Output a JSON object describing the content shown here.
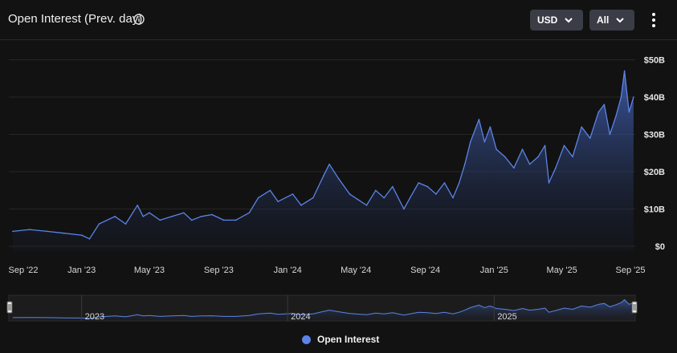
{
  "header": {
    "title": "Open Interest (Prev. day)",
    "info_icon": "info-icon",
    "currency_select": "USD",
    "range_select": "All",
    "menu_icon": "more-vertical-icon"
  },
  "colors": {
    "background": "#121212",
    "line": "#5b84e8",
    "grid": "#262626",
    "dropdown_bg": "#3a3d45"
  },
  "legend": {
    "label": "Open Interest",
    "color": "#5b84e8"
  },
  "navigator": {
    "year_labels": [
      "2023",
      "2024",
      "2025"
    ]
  },
  "chart_data": {
    "type": "area",
    "title": "Open Interest (Prev. day)",
    "x_tick_labels": [
      "Sep '22",
      "Jan '23",
      "May '23",
      "Sep '23",
      "Jan '24",
      "May '24",
      "Sep '24",
      "Jan '25",
      "May '25",
      "Sep '25"
    ],
    "y_tick_labels": [
      "$0",
      "$10B",
      "$20B",
      "$30B",
      "$40B",
      "$50B"
    ],
    "ylim": [
      0,
      50
    ],
    "y_unit": "billion USD",
    "grid": true,
    "legend_position": "bottom-center",
    "series": [
      {
        "name": "Open Interest",
        "x": [
          "2022-09-01",
          "2022-10-01",
          "2022-11-01",
          "2022-12-01",
          "2023-01-01",
          "2023-01-15",
          "2023-02-01",
          "2023-03-01",
          "2023-03-20",
          "2023-04-10",
          "2023-04-20",
          "2023-05-01",
          "2023-05-20",
          "2023-06-10",
          "2023-07-01",
          "2023-07-15",
          "2023-08-01",
          "2023-08-20",
          "2023-09-10",
          "2023-10-01",
          "2023-10-25",
          "2023-11-10",
          "2023-12-01",
          "2023-12-15",
          "2024-01-10",
          "2024-01-25",
          "2024-02-15",
          "2024-03-05",
          "2024-03-15",
          "2024-04-01",
          "2024-04-20",
          "2024-05-05",
          "2024-05-20",
          "2024-06-05",
          "2024-06-20",
          "2024-07-05",
          "2024-07-25",
          "2024-08-05",
          "2024-08-20",
          "2024-09-05",
          "2024-09-20",
          "2024-10-05",
          "2024-10-20",
          "2024-10-31",
          "2024-11-10",
          "2024-11-20",
          "2024-12-05",
          "2024-12-15",
          "2024-12-25",
          "2025-01-05",
          "2025-01-20",
          "2025-02-05",
          "2025-02-20",
          "2025-03-05",
          "2025-03-20",
          "2025-04-01",
          "2025-04-08",
          "2025-04-20",
          "2025-05-05",
          "2025-05-20",
          "2025-06-05",
          "2025-06-20",
          "2025-07-05",
          "2025-07-15",
          "2025-07-25",
          "2025-08-05",
          "2025-08-14",
          "2025-08-20",
          "2025-08-28",
          "2025-09-05"
        ],
        "values": [
          4,
          4.5,
          4,
          3.5,
          3,
          2,
          6,
          8,
          6,
          11,
          8,
          9,
          7,
          8,
          9,
          7,
          8,
          8.5,
          7,
          7,
          9,
          13,
          15,
          12,
          14,
          11,
          13,
          19,
          22,
          18,
          14,
          12.5,
          11,
          15,
          13,
          16,
          10,
          13,
          17,
          16,
          14,
          17,
          13,
          17,
          22,
          28,
          34,
          28,
          32,
          26,
          24,
          21,
          26,
          22,
          24,
          27,
          17,
          21,
          27,
          24,
          32,
          29,
          36,
          38,
          30,
          35,
          40,
          47,
          36,
          40
        ]
      }
    ]
  }
}
